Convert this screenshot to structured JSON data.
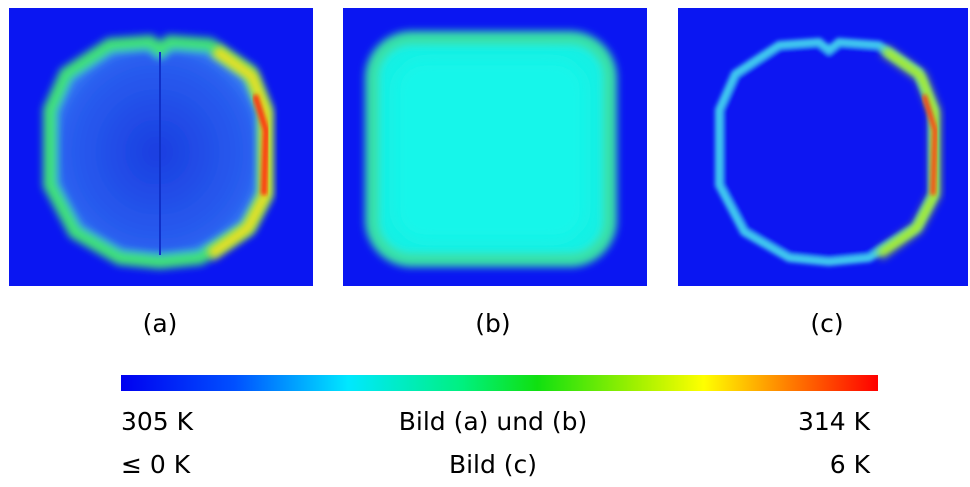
{
  "panels": [
    {
      "label": "(a)"
    },
    {
      "label": "(b)"
    },
    {
      "label": "(c)"
    }
  ],
  "colorbar": {
    "rows": [
      [
        "305 K",
        "Bild (a) und (b)",
        "314 K"
      ],
      [
        "≤ 0 K",
        "Bild (c)",
        "6 K"
      ]
    ]
  }
}
